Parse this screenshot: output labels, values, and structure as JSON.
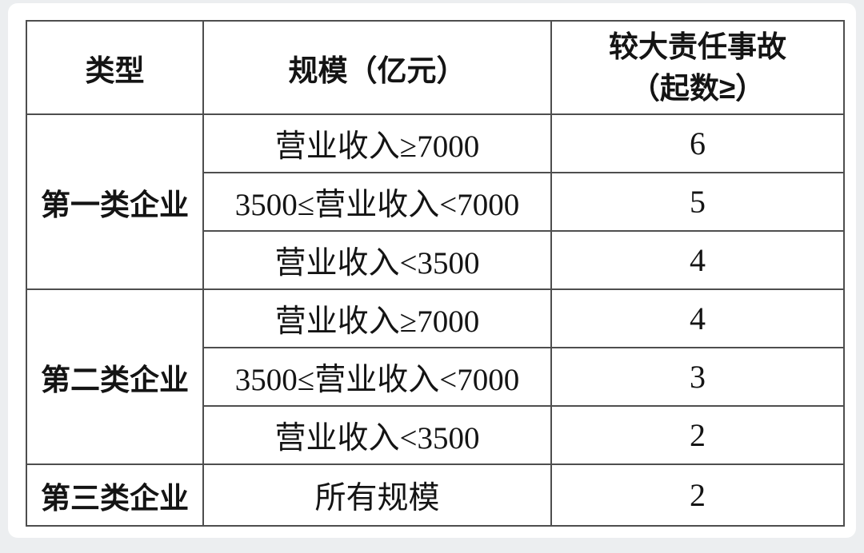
{
  "page": {
    "background_color": "#eceef0",
    "card_color": "#ffffff",
    "border_color": "#4e4e4e",
    "text_color": "#141414"
  },
  "table": {
    "header": {
      "type": "类型",
      "scale": "规模（亿元）",
      "accident_line1": "较大责任事故",
      "accident_line2": "（起数≥）"
    },
    "groups": [
      {
        "category": "第一类企业",
        "rows": [
          {
            "scale": "营业收入≥7000",
            "value": "6"
          },
          {
            "scale": "3500≤营业收入<7000",
            "value": "5"
          },
          {
            "scale": "营业收入<3500",
            "value": "4"
          }
        ]
      },
      {
        "category": "第二类企业",
        "rows": [
          {
            "scale": "营业收入≥7000",
            "value": "4"
          },
          {
            "scale": "3500≤营业收入<7000",
            "value": "3"
          },
          {
            "scale": "营业收入<3500",
            "value": "2"
          }
        ]
      },
      {
        "category": "第三类企业",
        "rows": [
          {
            "scale": "所有规模",
            "value": "2"
          }
        ]
      }
    ]
  },
  "chart_data": {
    "type": "table",
    "columns": [
      "类型",
      "规模（亿元）",
      "较大责任事故（起数≥）"
    ],
    "rows": [
      [
        "第一类企业",
        "营业收入≥7000",
        6
      ],
      [
        "第一类企业",
        "3500≤营业收入<7000",
        5
      ],
      [
        "第一类企业",
        "营业收入<3500",
        4
      ],
      [
        "第二类企业",
        "营业收入≥7000",
        4
      ],
      [
        "第二类企业",
        "3500≤营业收入<7000",
        3
      ],
      [
        "第二类企业",
        "营业收入<3500",
        2
      ],
      [
        "第三类企业",
        "所有规模",
        2
      ]
    ]
  }
}
